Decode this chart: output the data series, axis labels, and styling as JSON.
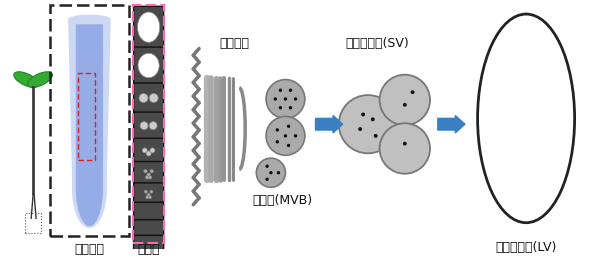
{
  "bg_color": "#ffffff",
  "label_konton": "根端組織",
  "label_shohoutai": "小胞体",
  "label_golgi": "ゴルジ体",
  "label_mvb": "多胞体(MVB)",
  "label_sv": "小さい液胞(SV)",
  "label_lv": "大きな液胞(LV)",
  "dark_gray_cell": "#4a4a4a",
  "med_gray": "#888888",
  "light_gray_sv": "#c0c0c0",
  "blue_arrow": "#3a7fc1",
  "pink_dash": "#ff69b4",
  "black_dash": "#222222",
  "golgi_gray": "#999999",
  "dot_color": "#111111",
  "lv_outline": "#222222",
  "seedling_green": "#33aa33",
  "seedling_stem": "#333333",
  "red_box": "#dd2222"
}
